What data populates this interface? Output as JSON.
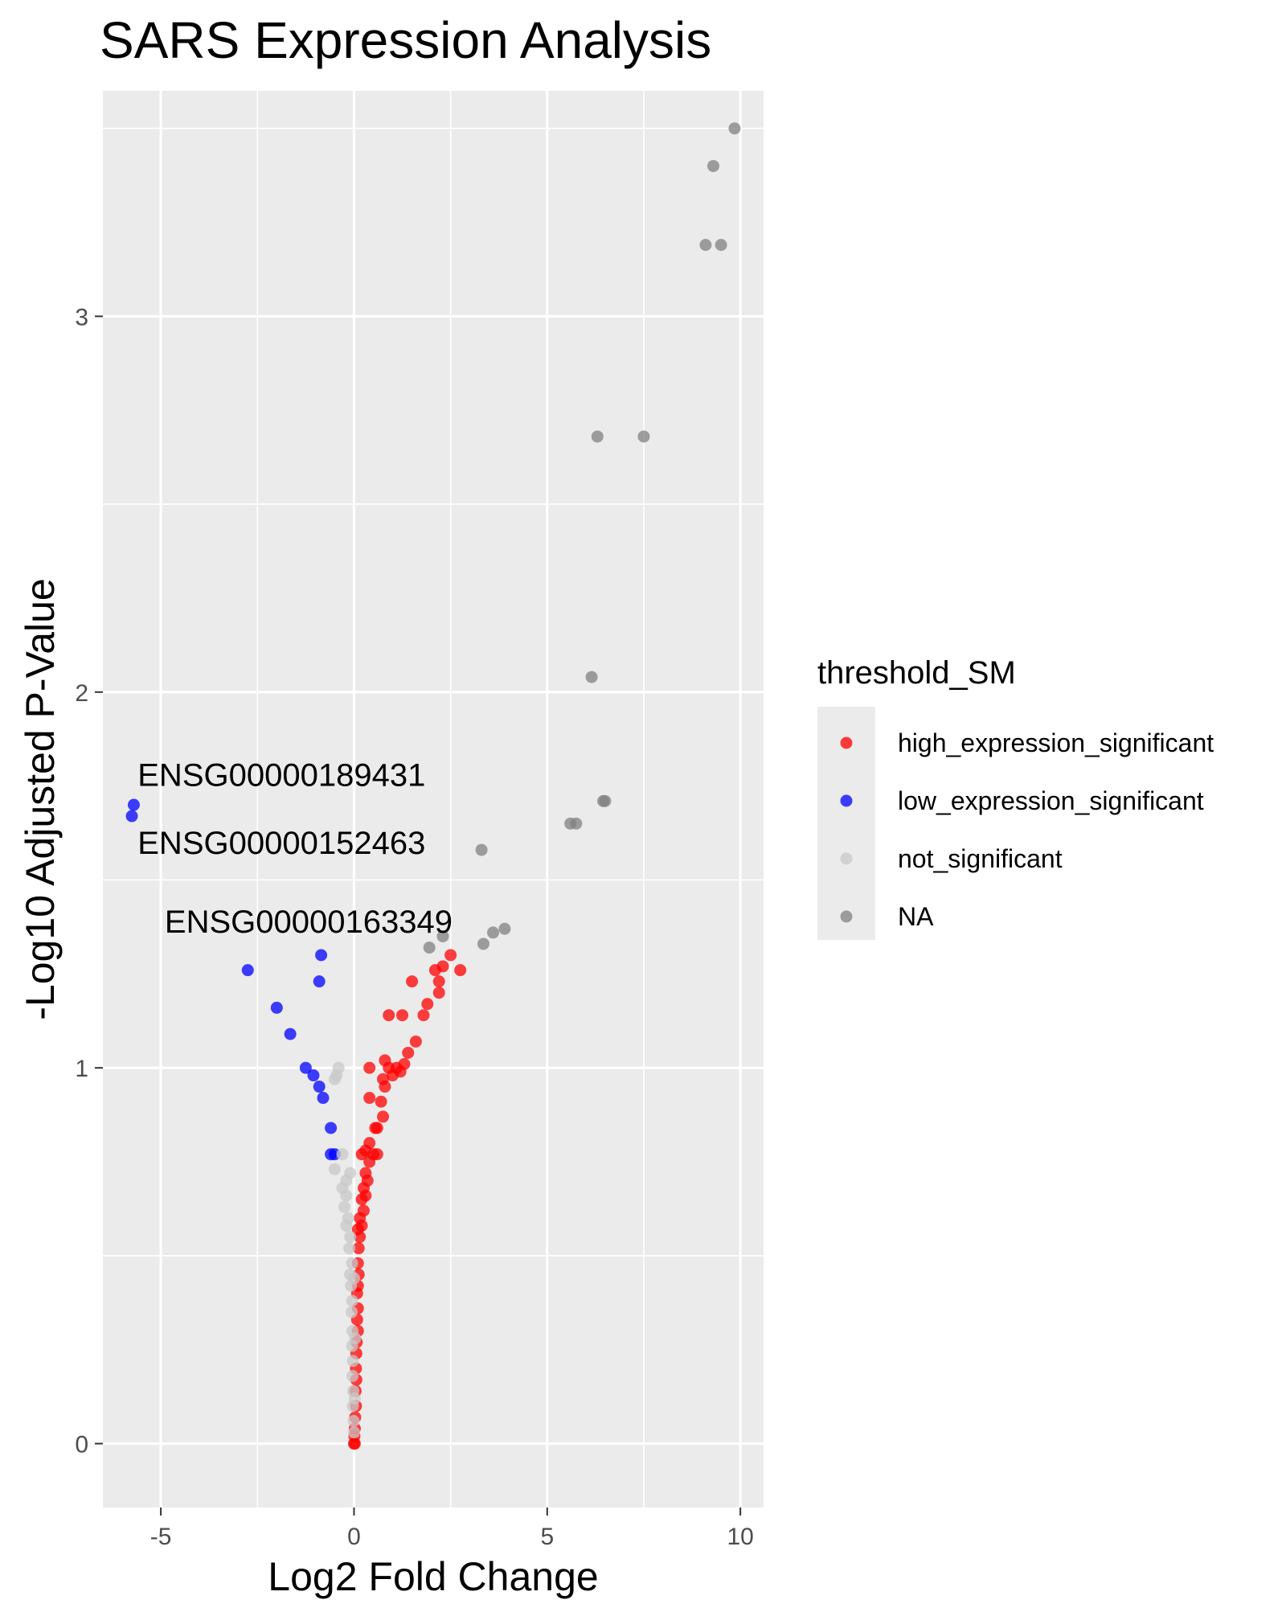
{
  "chart_data": {
    "type": "scatter",
    "title": "SARS Expression Analysis",
    "xlabel": "Log2 Fold Change",
    "ylabel": "-Log10 Adjusted P-Value",
    "xlim": [
      -6.5,
      10.6
    ],
    "ylim": [
      -0.17,
      3.6
    ],
    "xticks": [
      -5,
      0,
      5,
      10
    ],
    "yticks": [
      0,
      1,
      2,
      3
    ],
    "grid": true,
    "legend": {
      "title": "threshold_SM",
      "position": "right",
      "entries": [
        {
          "label": "high_expression_significant",
          "color": "#ff0000"
        },
        {
          "label": "low_expression_significant",
          "color": "#0000ff"
        },
        {
          "label": "not_significant",
          "color": "#c8c8c8"
        },
        {
          "label": "NA",
          "color": "#808080"
        }
      ]
    },
    "annotations": [
      {
        "text": "ENSG00000189431",
        "x": -5.6,
        "y": 1.75
      },
      {
        "text": "ENSG00000152463",
        "x": -5.6,
        "y": 1.57
      },
      {
        "text": "ENSG00000163349",
        "x": -4.9,
        "y": 1.36
      }
    ],
    "series": [
      {
        "name": "high_expression_significant",
        "color": "#ff0000",
        "points": [
          [
            0.4,
            1.0
          ],
          [
            0.8,
            1.02
          ],
          [
            0.9,
            1.0
          ],
          [
            1.0,
            0.98
          ],
          [
            1.1,
            1.0
          ],
          [
            1.2,
            0.99
          ],
          [
            1.3,
            1.01
          ],
          [
            1.4,
            1.04
          ],
          [
            1.6,
            1.07
          ],
          [
            0.9,
            1.14
          ],
          [
            1.25,
            1.14
          ],
          [
            1.8,
            1.14
          ],
          [
            1.9,
            1.17
          ],
          [
            2.2,
            1.2
          ],
          [
            2.2,
            1.23
          ],
          [
            2.3,
            1.27
          ],
          [
            2.1,
            1.26
          ],
          [
            2.5,
            1.3
          ],
          [
            2.75,
            1.26
          ],
          [
            1.5,
            1.23
          ],
          [
            0.75,
            0.97
          ],
          [
            0.8,
            0.95
          ],
          [
            0.7,
            0.91
          ],
          [
            0.75,
            0.87
          ],
          [
            0.6,
            0.84
          ],
          [
            0.55,
            0.84
          ],
          [
            0.4,
            0.92
          ],
          [
            0.4,
            0.8
          ],
          [
            0.3,
            0.78
          ],
          [
            0.5,
            0.77
          ],
          [
            0.6,
            0.77
          ],
          [
            0.2,
            0.77
          ],
          [
            0.4,
            0.75
          ],
          [
            0.3,
            0.72
          ],
          [
            0.35,
            0.7
          ],
          [
            0.25,
            0.68
          ],
          [
            0.3,
            0.66
          ],
          [
            0.2,
            0.65
          ],
          [
            0.25,
            0.62
          ],
          [
            0.15,
            0.6
          ],
          [
            0.2,
            0.58
          ],
          [
            0.1,
            0.57
          ],
          [
            0.15,
            0.55
          ],
          [
            0.12,
            0.52
          ],
          [
            0.1,
            0.48
          ],
          [
            0.12,
            0.45
          ],
          [
            0.1,
            0.42
          ],
          [
            0.08,
            0.4
          ],
          [
            0.1,
            0.36
          ],
          [
            0.08,
            0.33
          ],
          [
            0.1,
            0.3
          ],
          [
            0.07,
            0.27
          ],
          [
            0.06,
            0.24
          ],
          [
            0.05,
            0.2
          ],
          [
            0.06,
            0.17
          ],
          [
            0.04,
            0.14
          ],
          [
            0.05,
            0.1
          ],
          [
            0.03,
            0.07
          ],
          [
            0.02,
            0.04
          ],
          [
            0.01,
            0.02
          ],
          [
            0.0,
            0.0
          ],
          [
            0.02,
            0.0
          ]
        ]
      },
      {
        "name": "low_expression_significant",
        "color": "#0000ff",
        "points": [
          [
            -5.7,
            1.7
          ],
          [
            -5.75,
            1.67
          ],
          [
            -2.75,
            1.26
          ],
          [
            -0.85,
            1.3
          ],
          [
            -0.9,
            1.23
          ],
          [
            -2.0,
            1.16
          ],
          [
            -1.65,
            1.09
          ],
          [
            -1.25,
            1.0
          ],
          [
            -1.05,
            0.98
          ],
          [
            -0.9,
            0.95
          ],
          [
            -0.8,
            0.92
          ],
          [
            -0.6,
            0.84
          ],
          [
            -0.6,
            0.77
          ],
          [
            -0.5,
            0.77
          ]
        ]
      },
      {
        "name": "not_significant",
        "color": "#c8c8c8",
        "points": [
          [
            -0.4,
            1.0
          ],
          [
            -0.5,
            0.97
          ],
          [
            -0.45,
            0.98
          ],
          [
            -0.3,
            0.77
          ],
          [
            -0.5,
            0.73
          ],
          [
            -0.2,
            0.7
          ],
          [
            -0.1,
            0.72
          ],
          [
            -0.3,
            0.68
          ],
          [
            -0.2,
            0.66
          ],
          [
            -0.25,
            0.63
          ],
          [
            -0.15,
            0.6
          ],
          [
            -0.2,
            0.58
          ],
          [
            -0.1,
            0.55
          ],
          [
            -0.12,
            0.52
          ],
          [
            -0.05,
            0.48
          ],
          [
            -0.1,
            0.45
          ],
          [
            -0.08,
            0.42
          ],
          [
            -0.05,
            0.38
          ],
          [
            -0.06,
            0.35
          ],
          [
            -0.04,
            0.3
          ],
          [
            -0.05,
            0.26
          ],
          [
            -0.03,
            0.22
          ],
          [
            -0.04,
            0.18
          ],
          [
            -0.02,
            0.14
          ],
          [
            -0.03,
            0.1
          ],
          [
            -0.01,
            0.06
          ],
          [
            0.0,
            0.03
          ],
          [
            0.02,
            0.12
          ],
          [
            0.03,
            0.28
          ],
          [
            0.0,
            0.44
          ]
        ]
      },
      {
        "name": "NA",
        "color": "#808080",
        "points": [
          [
            9.85,
            3.5
          ],
          [
            9.3,
            3.4
          ],
          [
            9.1,
            3.19
          ],
          [
            9.5,
            3.19
          ],
          [
            6.3,
            2.68
          ],
          [
            7.5,
            2.68
          ],
          [
            6.15,
            2.04
          ],
          [
            6.45,
            1.71
          ],
          [
            6.5,
            1.71
          ],
          [
            5.6,
            1.65
          ],
          [
            5.75,
            1.65
          ],
          [
            3.3,
            1.58
          ],
          [
            3.9,
            1.37
          ],
          [
            3.6,
            1.36
          ],
          [
            3.35,
            1.33
          ],
          [
            2.3,
            1.35
          ],
          [
            1.95,
            1.32
          ]
        ]
      }
    ]
  }
}
